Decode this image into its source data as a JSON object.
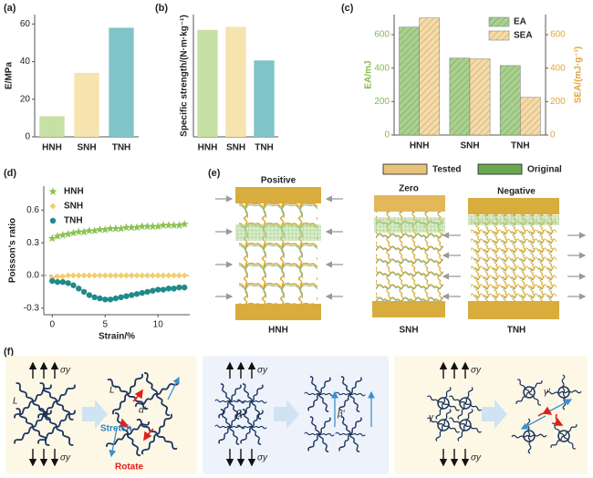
{
  "chart_data": [
    {
      "type": "bar",
      "panel_label": "(a)",
      "y_label": "E/MPa",
      "categories": [
        "HNH",
        "SNH",
        "TNH"
      ],
      "values": [
        11,
        34,
        58
      ],
      "colors": [
        "#c7e0a4",
        "#f6e3ae",
        "#7fc4c8"
      ],
      "ylim": [
        0,
        65
      ],
      "yticks": [
        0,
        20,
        40,
        60
      ]
    },
    {
      "type": "bar",
      "panel_label": "(b)",
      "y_label": "Specific strength/(N·m·kg⁻¹)",
      "categories": [
        "HNH",
        "SNH",
        "TNH"
      ],
      "values": [
        35,
        36,
        25
      ],
      "colors": [
        "#c7e0a4",
        "#f6e3ae",
        "#7fc4c8"
      ],
      "ylim": [
        0,
        40
      ]
    },
    {
      "type": "bar",
      "panel_label": "(c)",
      "y_label": "EA/mJ",
      "y2_label": "SEA/(mJ·g⁻¹)",
      "y_label_color": "#86b94c",
      "y2_label_color": "#e2a43a",
      "categories": [
        "HNH",
        "SNH",
        "TNH"
      ],
      "series": [
        {
          "name": "EA",
          "color": "#a9d18e",
          "values": [
            645,
            460,
            415
          ]
        },
        {
          "name": "SEA",
          "color": "#f6dba6",
          "axis": "y2",
          "values": [
            700,
            455,
            225
          ]
        }
      ],
      "ylim": [
        0,
        720
      ],
      "yticks": [
        0,
        200,
        400,
        600
      ],
      "y2lim": [
        0,
        720
      ],
      "y2ticks": [
        0,
        200,
        400,
        600
      ],
      "legend": "upper right"
    },
    {
      "type": "scatter",
      "panel_label": "(d)",
      "x_label": "Strain/%",
      "y_label": "Poisson's ratio",
      "x": [
        0,
        0.5,
        1,
        1.5,
        2,
        2.5,
        3,
        3.5,
        4,
        4.5,
        5,
        5.5,
        6,
        6.5,
        7,
        7.5,
        8,
        8.5,
        9,
        9.5,
        10,
        10.5,
        11,
        11.5,
        12,
        12.5
      ],
      "series": [
        {
          "name": "HNH",
          "color": "#8cc152",
          "marker": "star",
          "values": [
            0.34,
            0.36,
            0.37,
            0.38,
            0.39,
            0.4,
            0.4,
            0.41,
            0.41,
            0.42,
            0.42,
            0.43,
            0.43,
            0.43,
            0.44,
            0.44,
            0.44,
            0.45,
            0.45,
            0.45,
            0.45,
            0.46,
            0.46,
            0.46,
            0.46,
            0.47
          ]
        },
        {
          "name": "SNH",
          "color": "#f2cf6b",
          "marker": "diamond",
          "values": [
            -0.02,
            -0.01,
            -0.01,
            0,
            0,
            0,
            0,
            0,
            0,
            0,
            0,
            0,
            0,
            0,
            0,
            0,
            0,
            0,
            0,
            0,
            0,
            0,
            0,
            0,
            0,
            0
          ]
        },
        {
          "name": "TNH",
          "color": "#1f8a8a",
          "marker": "circle",
          "values": [
            -0.05,
            -0.06,
            -0.06,
            -0.07,
            -0.09,
            -0.12,
            -0.15,
            -0.18,
            -0.2,
            -0.21,
            -0.22,
            -0.22,
            -0.21,
            -0.2,
            -0.19,
            -0.18,
            -0.17,
            -0.16,
            -0.15,
            -0.14,
            -0.13,
            -0.13,
            -0.12,
            -0.12,
            -0.11,
            -0.11
          ]
        }
      ],
      "xlim": [
        -0.8,
        13
      ],
      "xticks": [
        0,
        5,
        10
      ],
      "ylim": [
        -0.36,
        0.82
      ],
      "yticks": [
        -0.3,
        {
          "value": 0,
          "label": "0.0"
        },
        0.3,
        0.6
      ],
      "zero_line": true,
      "legend": "upper left"
    }
  ],
  "panel_e": {
    "panel_label": "(e)",
    "legend": [
      "Tested",
      "Original"
    ],
    "columns": [
      {
        "title": "Positive",
        "label": "HNH"
      },
      {
        "title": "Zero",
        "label": "SNH"
      },
      {
        "title": "Negative",
        "label": "TNH"
      }
    ]
  },
  "panel_f": {
    "panel_label": "(f)",
    "sigma": "σy",
    "L": "L",
    "alpha": "α",
    "L_prime": "L′",
    "alpha_prime": "α′",
    "stretch": "Stretch",
    "rotate": "Rotate",
    "beta": "β",
    "beta_prime": "β′",
    "gamma": "γ",
    "gamma_prime": "γ′"
  }
}
